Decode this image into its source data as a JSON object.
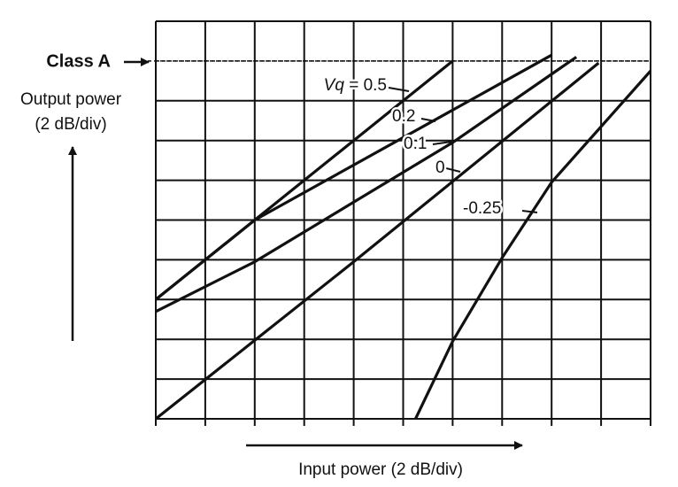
{
  "chart_data": {
    "type": "line",
    "xlabel": "Input power (2 dB/div)",
    "ylabel": [
      "Output power",
      "(2 dB/div)"
    ],
    "xlim": [
      0,
      20
    ],
    "ylim": [
      0,
      20
    ],
    "xticks": [
      0,
      2,
      4,
      6,
      8,
      10,
      12,
      14,
      16,
      18,
      20
    ],
    "yticks": [
      0,
      2,
      4,
      6,
      8,
      10,
      12,
      14,
      16,
      18,
      20
    ],
    "grid": true,
    "tick_labels": false,
    "reference_line": {
      "label": "Class A",
      "value": 18,
      "style": "dashed"
    },
    "series": [
      {
        "name": "Vq = 0.5",
        "color": "#111111",
        "x": [
          0,
          4,
          12
        ],
        "values": [
          6,
          10,
          18
        ]
      },
      {
        "name": "0.2",
        "color": "#111111",
        "x": [
          0,
          4,
          16
        ],
        "values": [
          6,
          10,
          18.3
        ]
      },
      {
        "name": "0.1",
        "color": "#111111",
        "x": [
          0,
          4,
          8,
          12,
          17
        ],
        "values": [
          5.4,
          7.9,
          10.9,
          13.9,
          18.2
        ]
      },
      {
        "name": "0",
        "color": "#111111",
        "x": [
          0,
          8,
          17.9
        ],
        "values": [
          0,
          7.9,
          17.9
        ]
      },
      {
        "name": "-0.25",
        "color": "#111111",
        "x": [
          10.5,
          12,
          14,
          16,
          20
        ],
        "values": [
          0,
          3.9,
          8.1,
          11.9,
          17.5
        ]
      }
    ]
  }
}
